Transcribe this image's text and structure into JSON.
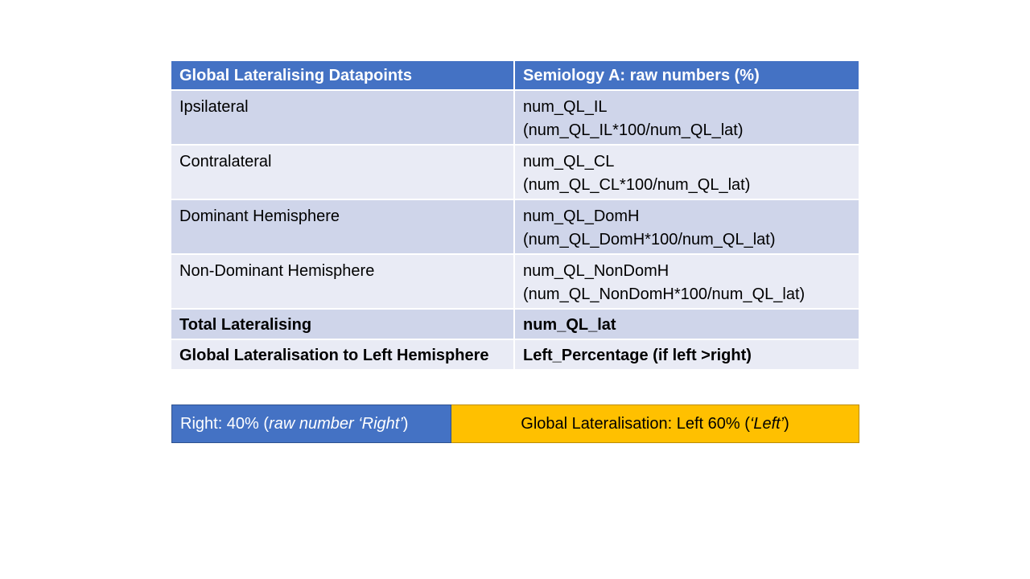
{
  "table": {
    "headers": [
      "Global Lateralising Datapoints",
      "Semiology A: raw numbers (%)"
    ],
    "rows": [
      {
        "label": "Ipsilateral",
        "value_line1": "num_QL_IL",
        "value_line2": "(num_QL_IL*100/num_QL_lat)"
      },
      {
        "label": "Contralateral",
        "value_line1": "num_QL_CL",
        "value_line2": "(num_QL_CL*100/num_QL_lat)"
      },
      {
        "label": "Dominant Hemisphere",
        "value_line1": "num_QL_DomH",
        "value_line2": "(num_QL_DomH*100/num_QL_lat)"
      },
      {
        "label": "Non-Dominant Hemisphere",
        "value_line1": "num_QL_NonDomH",
        "value_line2": "(num_QL_NonDomH*100/num_QL_lat)"
      },
      {
        "label": "Total Lateralising",
        "value_line1": "num_QL_lat",
        "value_line2": ""
      },
      {
        "label": "Global Lateralisation to Left Hemisphere",
        "value_line1": "Left_Percentage (if left >right)",
        "value_line2": ""
      }
    ]
  },
  "bar": {
    "right_prefix": "Right: 40% (",
    "right_italic": "raw number ‘Right’",
    "right_suffix": ")",
    "left_prefix": "Global Lateralisation: Left 60% (",
    "left_italic": "‘Left’",
    "left_suffix": ")",
    "right_fraction": 0.4,
    "left_fraction": 0.6,
    "colors": {
      "right": "#4472c4",
      "left": "#ffc000",
      "header": "#4472c4",
      "row_odd": "#cfd5ea",
      "row_even": "#e9ebf5"
    }
  }
}
